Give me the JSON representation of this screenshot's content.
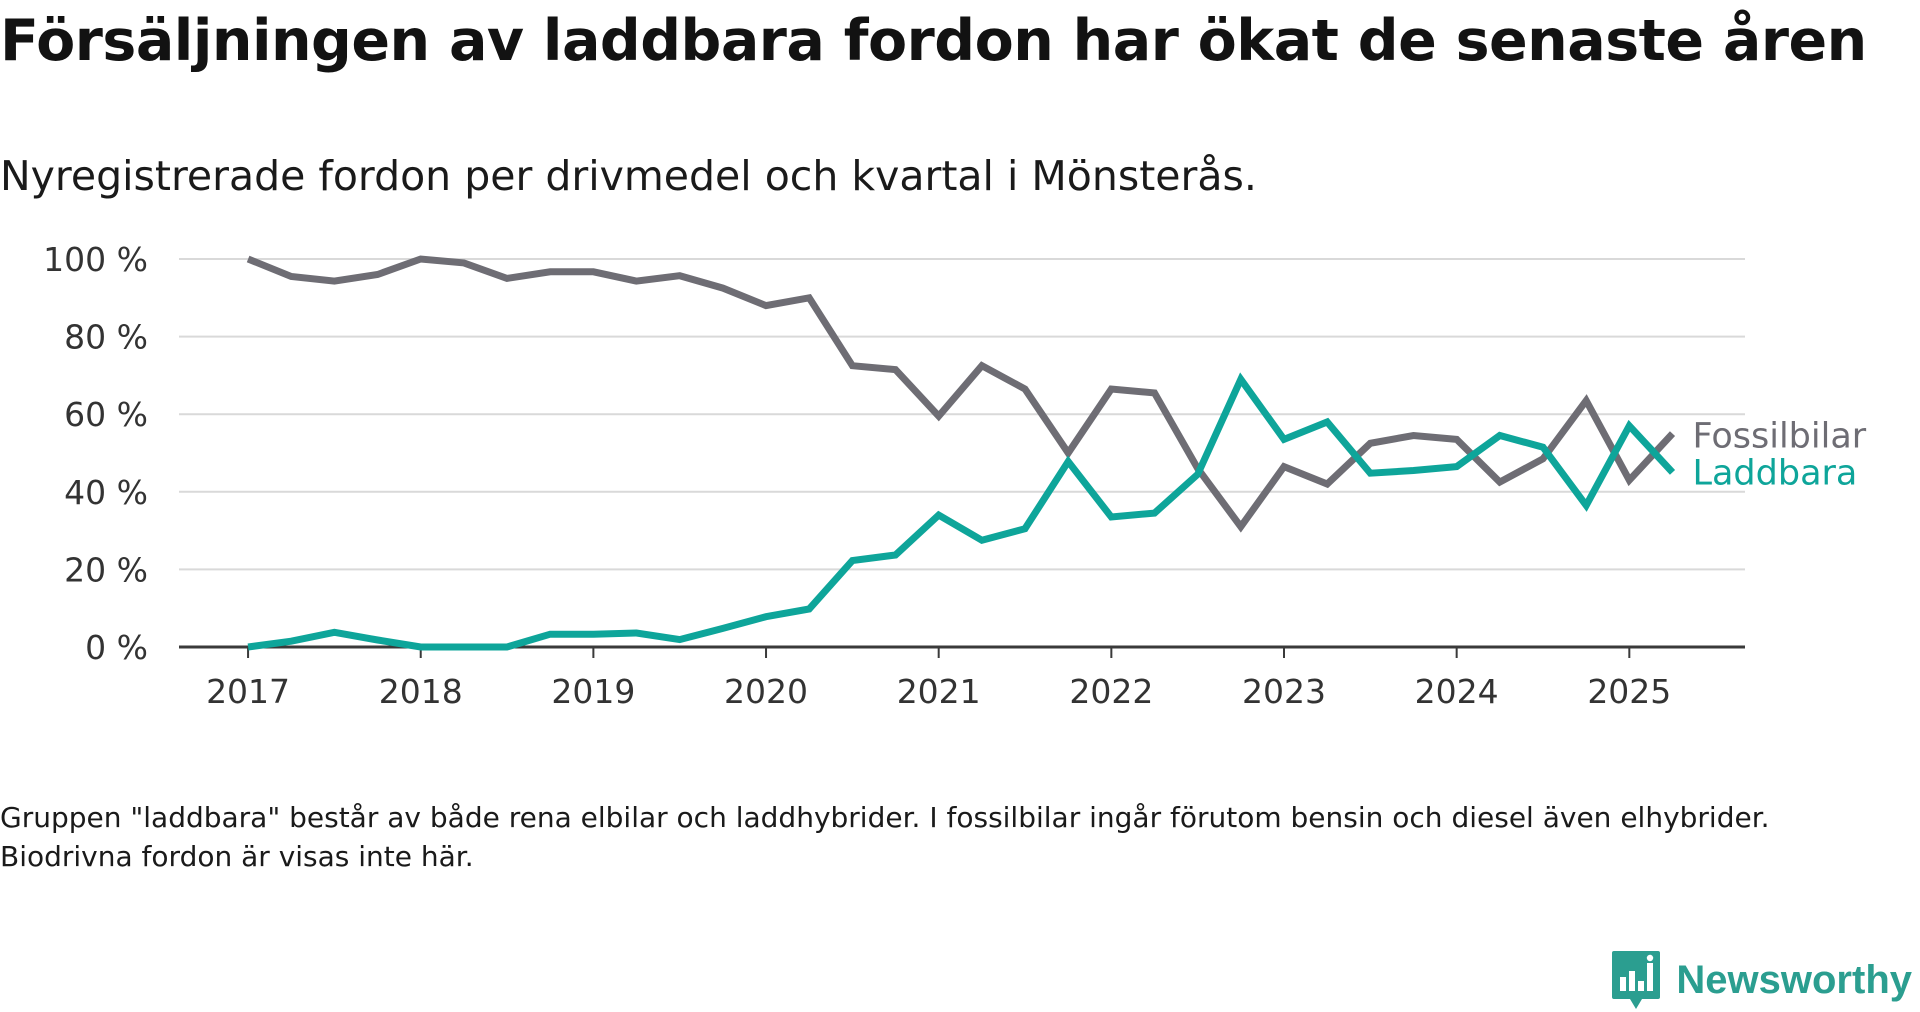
{
  "title": "Försäljningen av laddbara fordon har ökat de senaste åren",
  "subtitle": "Nyregistrerade fordon per drivmedel och kvartal i Mönsterås.",
  "note": "Gruppen \"laddbara\" består av både rena elbilar och laddhybrider. I fossilbilar ingår förutom bensin och diesel även elhybrider. Biodrivna fordon är visas inte här.",
  "brand": {
    "name": "Newsworthy",
    "icon": "newsworthy-logo-icon",
    "color": "#2b9e90"
  },
  "chart_data": {
    "type": "line",
    "x": [
      2017.0,
      2017.25,
      2017.5,
      2017.75,
      2018.0,
      2018.25,
      2018.5,
      2018.75,
      2019.0,
      2019.25,
      2019.5,
      2019.75,
      2020.0,
      2020.25,
      2020.5,
      2020.75,
      2021.0,
      2021.25,
      2021.5,
      2021.75,
      2022.0,
      2022.25,
      2022.5,
      2022.75,
      2023.0,
      2023.25,
      2023.5,
      2023.75,
      2024.0,
      2024.25,
      2024.5,
      2024.75,
      2025.0,
      2025.25
    ],
    "xticks": [
      2017,
      2018,
      2019,
      2020,
      2021,
      2022,
      2023,
      2024,
      2025
    ],
    "xtick_labels": [
      "2017",
      "2018",
      "2019",
      "2020",
      "2021",
      "2022",
      "2023",
      "2024",
      "2025"
    ],
    "yticks": [
      0,
      20,
      40,
      60,
      80,
      100
    ],
    "ytick_labels": [
      "0 %",
      "20 %",
      "40 %",
      "60 %",
      "80 %",
      "100 %"
    ],
    "ylim": [
      0,
      100
    ],
    "xlim": [
      2016.6,
      2025.67
    ],
    "grid": "horizontal",
    "series": [
      {
        "name": "Fossilbilar",
        "color": "#6e6d74",
        "values": [
          100,
          95.5,
          94.3,
          96,
          100,
          99,
          95,
          96.7,
          96.7,
          94.3,
          95.7,
          92.5,
          88,
          90,
          72.5,
          71.5,
          59.5,
          72.5,
          66.5,
          50,
          66.5,
          65.5,
          46,
          31,
          46.5,
          42,
          52.5,
          54.5,
          53.5,
          42.5,
          48.5,
          63.5,
          43,
          55
        ]
      },
      {
        "name": "Laddbara",
        "color": "#0ea59a",
        "values": [
          0,
          1.5,
          3.8,
          1.8,
          0,
          0,
          0,
          3.3,
          3.3,
          3.6,
          1.9,
          4.8,
          7.8,
          9.8,
          22.3,
          23.7,
          34,
          27.5,
          30.5,
          47.8,
          33.5,
          34.5,
          44.5,
          69,
          53.5,
          58,
          44.8,
          45.5,
          46.5,
          54.5,
          51.5,
          36.5,
          57,
          45
        ]
      }
    ]
  }
}
